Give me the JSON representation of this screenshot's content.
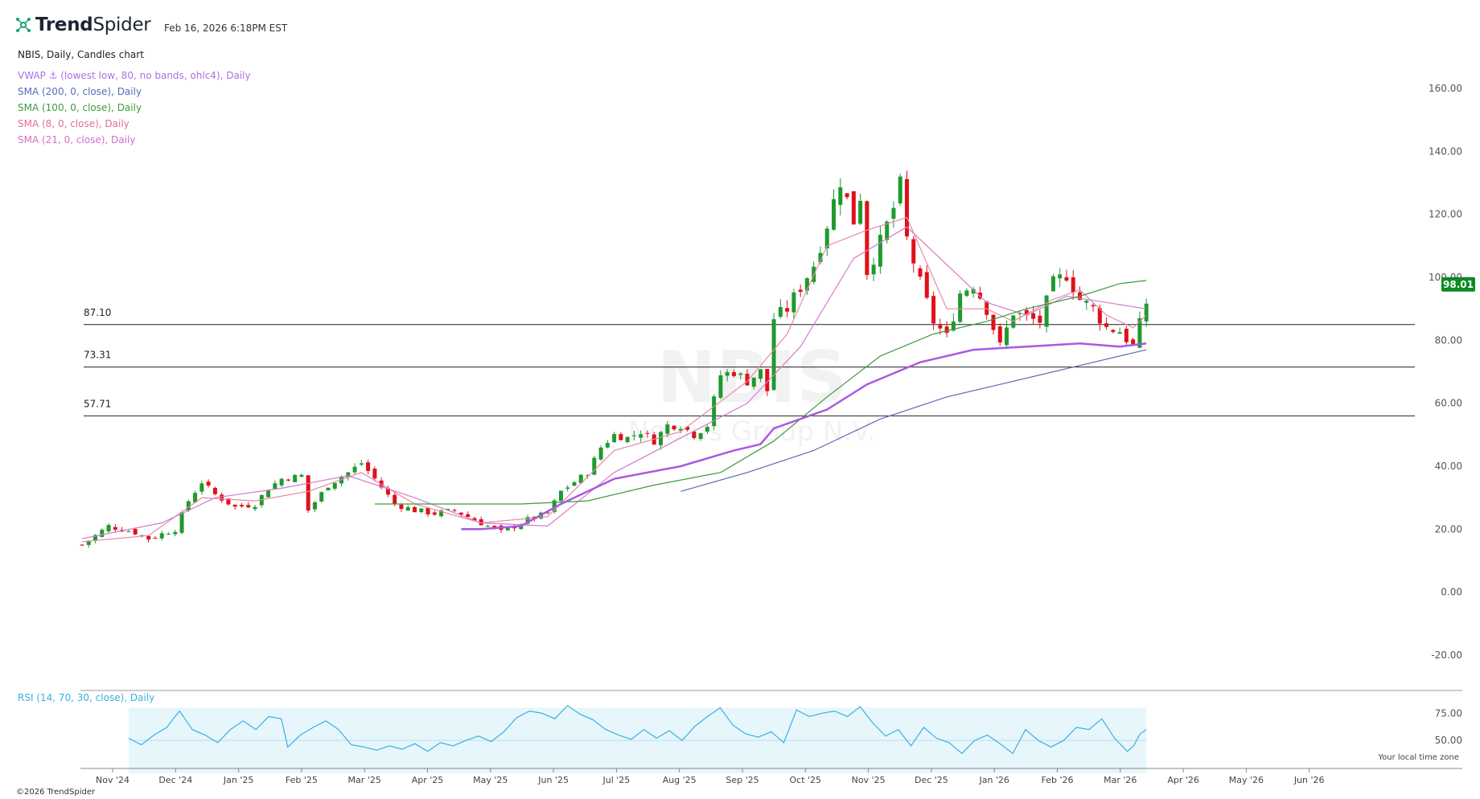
{
  "header": {
    "logo_text_bold": "Trend",
    "logo_text_rest": "Spider",
    "timestamp": "Feb 16, 2026 6:18PM EST"
  },
  "chart_title": "NBIS, Daily, Candles chart",
  "indicators": [
    {
      "label": "VWAP ⚓ (lowest low, 80, no bands, ohlc4), Daily",
      "color": "#b070e0"
    },
    {
      "label": "SMA (200, 0, close), Daily",
      "color": "#5a6ab8"
    },
    {
      "label": "SMA (100, 0, close), Daily",
      "color": "#3f9a3f"
    },
    {
      "label": "SMA (8, 0, close), Daily",
      "color": "#e07090"
    },
    {
      "label": "SMA (21, 0, close), Daily",
      "color": "#d070c8"
    }
  ],
  "watermark": {
    "ticker": "NBIS",
    "company": "Nebius Group N.V."
  },
  "rsi_label": "RSI (14, 70, 30, close), Daily",
  "rsi_color": "#3ab0e0",
  "last_price_badge": "98.01",
  "timezone_note": "Your local time zone",
  "copyright": "©2026 TrendSpider",
  "chart_data": {
    "type": "line",
    "title": "NBIS, Daily, Candles chart",
    "y_ticks": [
      "160.00",
      "140.00",
      "120.00",
      "100.00",
      "80.00",
      "60.00",
      "40.00",
      "20.00",
      "0.00",
      "-20.00"
    ],
    "ylim": [
      -20,
      160
    ],
    "rsi_ticks": [
      "75.00",
      "50.00"
    ],
    "x_ticks": [
      "Nov '24",
      "Dec '24",
      "Jan '25",
      "Feb '25",
      "Mar '25",
      "Apr '25",
      "May '25",
      "Jun '25",
      "Jul '25",
      "Aug '25",
      "Sep '25",
      "Oct '25",
      "Nov '25",
      "Dec '25",
      "Jan '26",
      "Feb '26",
      "Mar '26",
      "Apr '26",
      "May '26",
      "Jun '26"
    ],
    "horizontal_levels": [
      {
        "label": "87.10",
        "value": 85
      },
      {
        "label": "73.31",
        "value": 71.5
      },
      {
        "label": "57.71",
        "value": 56
      }
    ],
    "series": [
      {
        "name": "Price (close)",
        "values": [
          [
            0,
            15
          ],
          [
            4,
            21
          ],
          [
            8,
            19
          ],
          [
            10,
            17
          ],
          [
            14,
            20
          ],
          [
            16,
            29
          ],
          [
            18,
            35
          ],
          [
            20,
            31
          ],
          [
            23,
            27
          ],
          [
            26,
            28
          ],
          [
            28,
            33
          ],
          [
            30,
            36
          ],
          [
            33,
            37
          ],
          [
            34,
            26
          ],
          [
            37,
            34
          ],
          [
            40,
            38
          ],
          [
            42,
            41
          ],
          [
            44,
            36
          ],
          [
            47,
            28
          ],
          [
            50,
            26
          ],
          [
            53,
            25
          ],
          [
            56,
            26
          ],
          [
            58,
            24
          ],
          [
            61,
            21
          ],
          [
            63,
            19
          ],
          [
            65,
            21
          ],
          [
            67,
            23
          ],
          [
            70,
            25
          ],
          [
            72,
            32
          ],
          [
            74,
            35
          ],
          [
            76,
            38
          ],
          [
            78,
            46
          ],
          [
            80,
            50
          ],
          [
            82,
            49
          ],
          [
            84,
            51
          ],
          [
            86,
            48
          ],
          [
            88,
            53
          ],
          [
            90,
            53
          ],
          [
            92,
            50
          ],
          [
            94,
            53
          ],
          [
            96,
            69
          ],
          [
            98,
            70
          ],
          [
            100,
            67
          ],
          [
            102,
            70
          ],
          [
            103,
            64
          ],
          [
            104,
            87
          ],
          [
            106,
            90
          ],
          [
            108,
            97
          ],
          [
            110,
            104
          ],
          [
            112,
            117
          ],
          [
            114,
            131
          ],
          [
            116,
            118
          ],
          [
            117,
            126
          ],
          [
            118,
            102
          ],
          [
            120,
            111
          ],
          [
            122,
            122
          ],
          [
            123,
            129
          ],
          [
            124,
            112
          ],
          [
            126,
            98
          ],
          [
            128,
            86
          ],
          [
            130,
            81
          ],
          [
            132,
            95
          ],
          [
            134,
            98
          ],
          [
            136,
            90
          ],
          [
            138,
            78
          ],
          [
            140,
            89
          ],
          [
            142,
            87
          ],
          [
            144,
            86
          ],
          [
            146,
            98
          ],
          [
            148,
            101
          ],
          [
            150,
            93
          ],
          [
            152,
            90
          ],
          [
            154,
            84
          ],
          [
            156,
            83
          ],
          [
            158,
            78
          ],
          [
            159,
            85
          ],
          [
            160,
            92
          ]
        ]
      },
      {
        "name": "SMA 8",
        "values": [
          [
            0,
            16
          ],
          [
            10,
            18
          ],
          [
            18,
            30
          ],
          [
            26,
            29
          ],
          [
            34,
            32
          ],
          [
            42,
            38
          ],
          [
            50,
            28
          ],
          [
            60,
            22
          ],
          [
            70,
            24
          ],
          [
            80,
            45
          ],
          [
            90,
            51
          ],
          [
            100,
            67
          ],
          [
            106,
            82
          ],
          [
            112,
            110
          ],
          [
            118,
            115
          ],
          [
            124,
            119
          ],
          [
            130,
            90
          ],
          [
            136,
            90
          ],
          [
            140,
            86
          ],
          [
            146,
            93
          ],
          [
            150,
            96
          ],
          [
            154,
            88
          ],
          [
            158,
            84
          ],
          [
            160,
            88
          ]
        ]
      },
      {
        "name": "SMA 21",
        "values": [
          [
            0,
            17
          ],
          [
            12,
            22
          ],
          [
            20,
            30
          ],
          [
            30,
            33
          ],
          [
            40,
            37
          ],
          [
            50,
            30
          ],
          [
            60,
            22
          ],
          [
            70,
            21
          ],
          [
            80,
            38
          ],
          [
            90,
            49
          ],
          [
            100,
            60
          ],
          [
            108,
            78
          ],
          [
            116,
            106
          ],
          [
            124,
            116
          ],
          [
            130,
            104
          ],
          [
            136,
            92
          ],
          [
            142,
            88
          ],
          [
            148,
            94
          ],
          [
            154,
            92
          ],
          [
            160,
            90
          ]
        ]
      },
      {
        "name": "SMA 100",
        "values": [
          [
            44,
            28
          ],
          [
            56,
            28
          ],
          [
            66,
            28
          ],
          [
            76,
            29
          ],
          [
            86,
            34
          ],
          [
            96,
            38
          ],
          [
            104,
            48
          ],
          [
            112,
            62
          ],
          [
            120,
            75
          ],
          [
            128,
            82
          ],
          [
            136,
            86
          ],
          [
            142,
            90
          ],
          [
            150,
            94
          ],
          [
            156,
            98
          ],
          [
            160,
            99
          ]
        ]
      },
      {
        "name": "SMA 200",
        "values": [
          [
            90,
            32
          ],
          [
            100,
            38
          ],
          [
            110,
            45
          ],
          [
            120,
            55
          ],
          [
            130,
            62
          ],
          [
            140,
            67
          ],
          [
            150,
            72
          ],
          [
            160,
            77
          ]
        ]
      },
      {
        "name": "VWAP",
        "values": [
          [
            57,
            20
          ],
          [
            60,
            20
          ],
          [
            66,
            21
          ],
          [
            72,
            28
          ],
          [
            80,
            36
          ],
          [
            90,
            40
          ],
          [
            98,
            45
          ],
          [
            102,
            47
          ],
          [
            104,
            52
          ],
          [
            112,
            58
          ],
          [
            118,
            66
          ],
          [
            126,
            73
          ],
          [
            134,
            77
          ],
          [
            142,
            78
          ],
          [
            150,
            79
          ],
          [
            156,
            78
          ],
          [
            160,
            79
          ]
        ]
      }
    ],
    "rsi_values": [
      [
        0,
        52
      ],
      [
        2,
        46
      ],
      [
        4,
        55
      ],
      [
        6,
        62
      ],
      [
        7,
        70
      ],
      [
        8,
        77
      ],
      [
        10,
        60
      ],
      [
        12,
        55
      ],
      [
        14,
        48
      ],
      [
        16,
        60
      ],
      [
        18,
        68
      ],
      [
        20,
        60
      ],
      [
        22,
        72
      ],
      [
        24,
        70
      ],
      [
        25,
        44
      ],
      [
        27,
        55
      ],
      [
        29,
        62
      ],
      [
        31,
        68
      ],
      [
        33,
        60
      ],
      [
        35,
        46
      ],
      [
        37,
        44
      ],
      [
        39,
        41
      ],
      [
        41,
        45
      ],
      [
        43,
        42
      ],
      [
        45,
        47
      ],
      [
        47,
        40
      ],
      [
        49,
        48
      ],
      [
        51,
        45
      ],
      [
        53,
        50
      ],
      [
        55,
        54
      ],
      [
        57,
        49
      ],
      [
        59,
        58
      ],
      [
        61,
        71
      ],
      [
        63,
        77
      ],
      [
        65,
        75
      ],
      [
        67,
        70
      ],
      [
        69,
        82
      ],
      [
        71,
        74
      ],
      [
        73,
        69
      ],
      [
        75,
        60
      ],
      [
        77,
        55
      ],
      [
        79,
        51
      ],
      [
        81,
        60
      ],
      [
        83,
        52
      ],
      [
        85,
        59
      ],
      [
        87,
        50
      ],
      [
        89,
        63
      ],
      [
        91,
        72
      ],
      [
        93,
        80
      ],
      [
        95,
        64
      ],
      [
        97,
        56
      ],
      [
        99,
        53
      ],
      [
        101,
        58
      ],
      [
        103,
        48
      ],
      [
        105,
        78
      ],
      [
        107,
        72
      ],
      [
        109,
        75
      ],
      [
        111,
        77
      ],
      [
        113,
        72
      ],
      [
        115,
        81
      ],
      [
        117,
        66
      ],
      [
        119,
        54
      ],
      [
        121,
        60
      ],
      [
        123,
        45
      ],
      [
        125,
        62
      ],
      [
        127,
        52
      ],
      [
        129,
        48
      ],
      [
        131,
        38
      ],
      [
        133,
        50
      ],
      [
        135,
        55
      ],
      [
        137,
        47
      ],
      [
        139,
        38
      ],
      [
        141,
        60
      ],
      [
        143,
        50
      ],
      [
        145,
        44
      ],
      [
        147,
        50
      ],
      [
        149,
        62
      ],
      [
        151,
        60
      ],
      [
        153,
        70
      ],
      [
        155,
        52
      ],
      [
        157,
        40
      ],
      [
        158,
        45
      ],
      [
        159,
        56
      ],
      [
        160,
        60
      ]
    ]
  }
}
